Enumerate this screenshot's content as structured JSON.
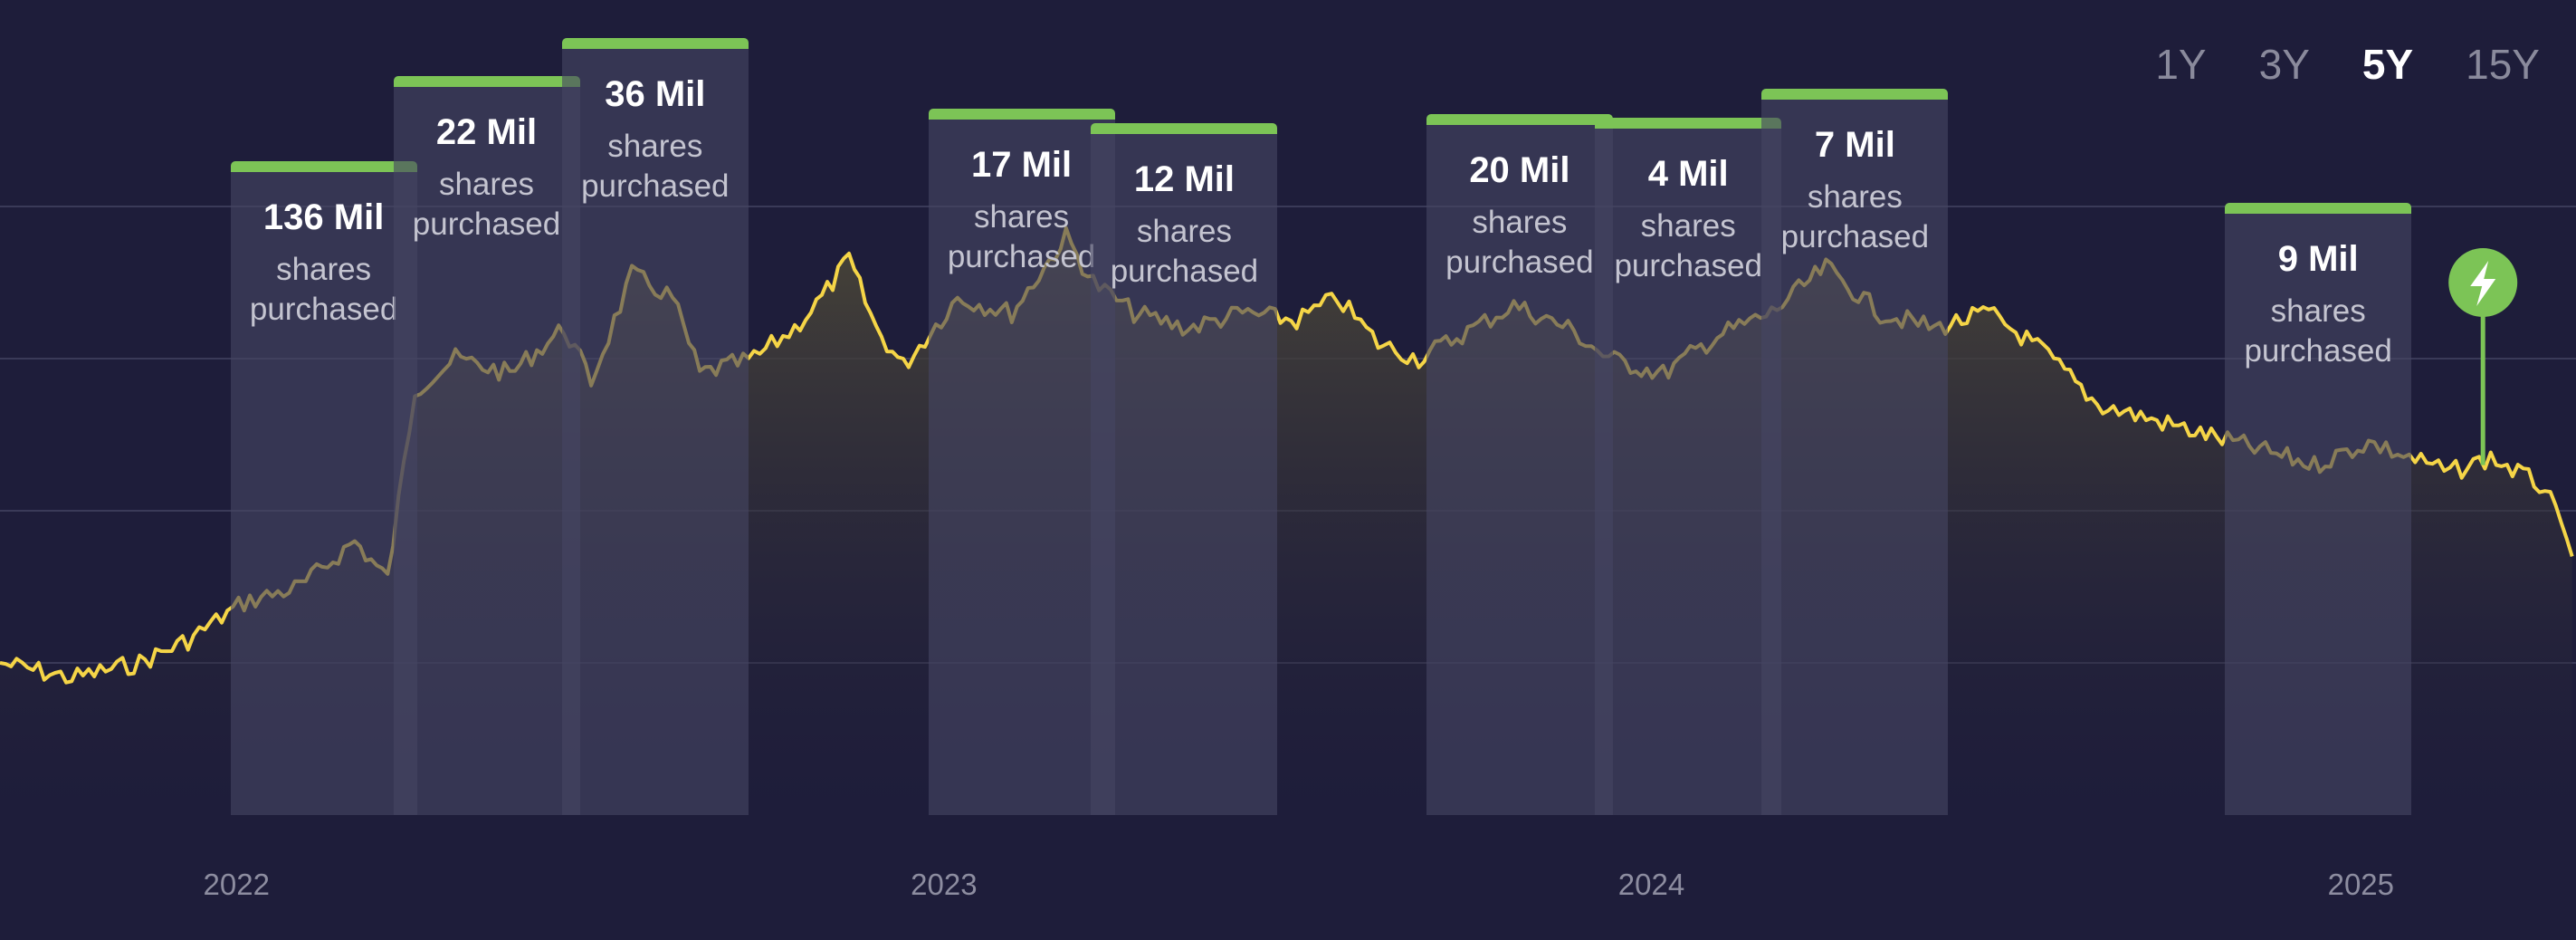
{
  "range_selector": {
    "options": [
      "1Y",
      "3Y",
      "5Y",
      "15Y"
    ],
    "active": "5Y"
  },
  "colors": {
    "background": "#1e1d3a",
    "line": "#f5d547",
    "accent_green": "#7cc456",
    "grid": "#3a3a58"
  },
  "chart_data": {
    "type": "line",
    "x_tick_labels": [
      "2022",
      "2023",
      "2024",
      "2025"
    ],
    "series_points": [
      [
        "2021-09-01",
        20.0
      ],
      [
        "2021-10-08",
        19.0
      ],
      [
        "2021-11-12",
        20.0
      ],
      [
        "2021-12-07",
        21.5
      ],
      [
        "2022-01-05",
        24.0
      ],
      [
        "2022-02-03",
        25.0
      ],
      [
        "2022-03-03",
        28.0
      ],
      [
        "2022-03-20",
        25.5
      ],
      [
        "2022-04-03",
        38.0
      ],
      [
        "2022-04-24",
        40.0
      ],
      [
        "2022-05-22",
        39.0
      ],
      [
        "2022-06-19",
        42.0
      ],
      [
        "2022-07-03",
        38.5
      ],
      [
        "2022-07-24",
        45.5
      ],
      [
        "2022-08-14",
        44.0
      ],
      [
        "2022-08-28",
        39.0
      ],
      [
        "2022-09-25",
        40.0
      ],
      [
        "2022-10-16",
        42.0
      ],
      [
        "2022-10-30",
        44.0
      ],
      [
        "2022-11-13",
        46.5
      ],
      [
        "2022-11-27",
        42.0
      ],
      [
        "2022-12-11",
        39.5
      ],
      [
        "2023-01-08",
        44.0
      ],
      [
        "2023-02-05",
        43.0
      ],
      [
        "2023-03-05",
        48.0
      ],
      [
        "2023-03-19",
        45.0
      ],
      [
        "2023-04-09",
        43.0
      ],
      [
        "2023-05-07",
        42.0
      ],
      [
        "2023-06-04",
        43.0
      ],
      [
        "2023-07-02",
        42.5
      ],
      [
        "2023-07-23",
        44.0
      ],
      [
        "2023-08-13",
        41.0
      ],
      [
        "2023-09-03",
        40.0
      ],
      [
        "2023-10-01",
        42.0
      ],
      [
        "2023-10-22",
        43.5
      ],
      [
        "2023-11-19",
        42.0
      ],
      [
        "2023-12-10",
        40.0
      ],
      [
        "2024-01-07",
        39.0
      ],
      [
        "2024-02-04",
        41.5
      ],
      [
        "2024-03-03",
        43.0
      ],
      [
        "2024-03-31",
        46.0
      ],
      [
        "2024-04-28",
        43.0
      ],
      [
        "2024-05-26",
        42.0
      ],
      [
        "2024-06-23",
        43.0
      ],
      [
        "2024-07-21",
        40.5
      ],
      [
        "2024-08-18",
        37.0
      ],
      [
        "2024-09-15",
        36.0
      ],
      [
        "2024-10-13",
        35.0
      ],
      [
        "2024-11-10",
        34.0
      ],
      [
        "2024-12-08",
        33.0
      ],
      [
        "2025-01-05",
        34.5
      ],
      [
        "2025-01-26",
        33.5
      ],
      [
        "2025-02-16",
        32.5
      ],
      [
        "2025-03-09",
        33.5
      ],
      [
        "2025-04-06",
        31.5
      ],
      [
        "2025-04-20",
        27.0
      ]
    ],
    "purchases": [
      {
        "date": "2022-02-15",
        "value": "136 Mil",
        "label": "shares purchased"
      },
      {
        "date": "2022-05-10",
        "value": "22 Mil",
        "label": "shares purchased"
      },
      {
        "date": "2022-08-05",
        "value": "36 Mil",
        "label": "shares purchased"
      },
      {
        "date": "2023-02-10",
        "value": "17 Mil",
        "label": "shares purchased"
      },
      {
        "date": "2023-05-05",
        "value": "12 Mil",
        "label": "shares purchased"
      },
      {
        "date": "2023-10-25",
        "value": "20 Mil",
        "label": "shares purchased"
      },
      {
        "date": "2024-01-20",
        "value": "4 Mil",
        "label": "shares purchased"
      },
      {
        "date": "2024-04-15",
        "value": "7 Mil",
        "label": "shares purchased"
      },
      {
        "date": "2024-12-10",
        "value": "9 Mil",
        "label": "shares purchased"
      }
    ],
    "event_marker": {
      "date": "2025-03-05",
      "value": 33.0,
      "icon": "lightning-bolt-icon"
    },
    "ylim": [
      10,
      60
    ],
    "grid": true
  }
}
